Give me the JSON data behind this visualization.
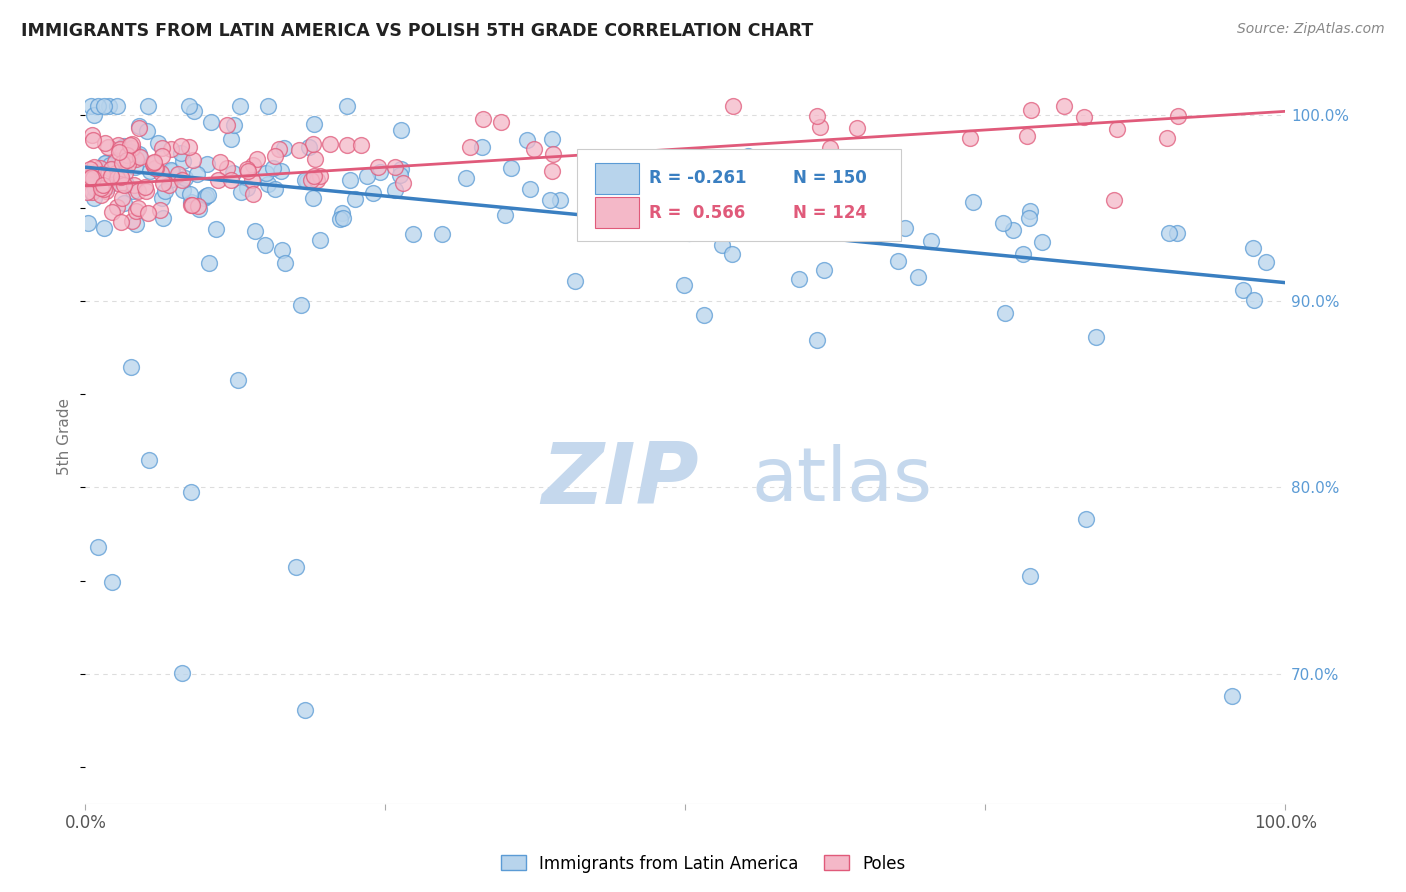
{
  "title": "IMMIGRANTS FROM LATIN AMERICA VS POLISH 5TH GRADE CORRELATION CHART",
  "source": "Source: ZipAtlas.com",
  "ylabel": "5th Grade",
  "ytick_labels": [
    "70.0%",
    "80.0%",
    "90.0%",
    "100.0%"
  ],
  "ytick_positions": [
    0.7,
    0.8,
    0.9,
    1.0
  ],
  "legend_blue_r": "R = -0.261",
  "legend_blue_n": "N = 150",
  "legend_pink_r": "R =  0.566",
  "legend_pink_n": "N = 124",
  "blue_fill": "#b8d4ec",
  "blue_edge": "#5b9bd5",
  "pink_fill": "#f4b8c8",
  "pink_edge": "#e05a7a",
  "blue_line": "#3a7fc1",
  "pink_line": "#e05a7a",
  "blue_trend_x": [
    0.0,
    1.0
  ],
  "blue_trend_y": [
    0.972,
    0.91
  ],
  "pink_trend_x": [
    0.0,
    1.0
  ],
  "pink_trend_y": [
    0.962,
    1.002
  ],
  "ylim": [
    0.63,
    1.025
  ],
  "xlim": [
    0.0,
    1.0
  ],
  "watermark_zip": "ZIP",
  "watermark_atlas": "atlas",
  "watermark_color_zip": "#c5d8ed",
  "watermark_color_atlas": "#c5d8ed",
  "background_color": "#ffffff",
  "grid_color": "#dddddd",
  "tick_color": "#5b9bd5",
  "title_color": "#222222",
  "source_color": "#888888"
}
